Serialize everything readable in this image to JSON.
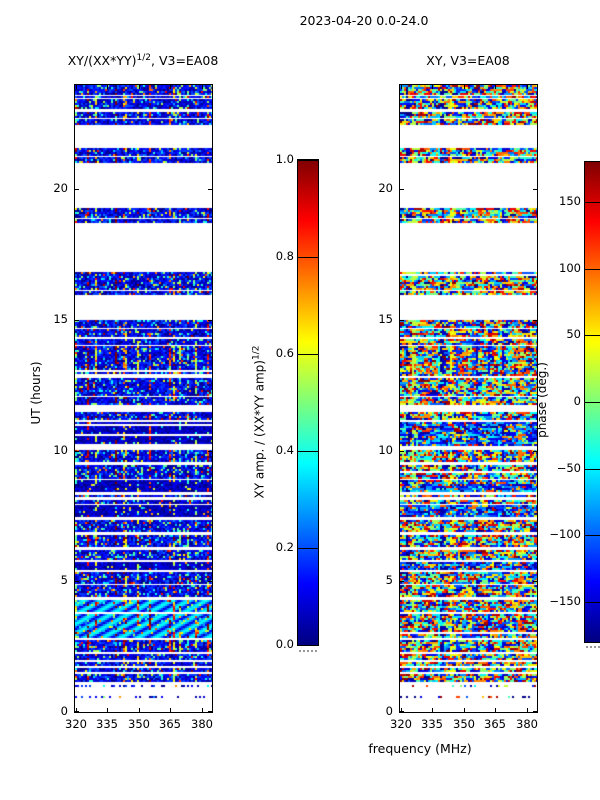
{
  "figure_title": "2023-04-20 0.0-24.0",
  "background": "#ffffff",
  "text_color": "#000000",
  "colormap": "jet",
  "chart_data": [
    {
      "type": "heatmap",
      "title": {
        "base": "XY/(XX*YY)",
        "sup": "1/2",
        "rest": ", V3=EA08"
      },
      "x_axis": {
        "label": "",
        "ticks": [
          "320",
          "335",
          "350",
          "365",
          "380"
        ],
        "range": [
          319.5,
          385
        ],
        "unit": "MHz"
      },
      "y_axis": {
        "label": "UT (hours)",
        "ticks": [
          "0",
          "5",
          "10",
          "15",
          "20"
        ],
        "range": [
          0,
          24
        ]
      },
      "colorbar": {
        "label": {
          "base": "XY amp. / (XX*YY amp)",
          "sup": "1/2"
        },
        "ticks": [
          "0.0",
          "0.2",
          "0.4",
          "0.6",
          "0.8",
          "1.0"
        ],
        "range": [
          0,
          1
        ],
        "colormap": "jet"
      },
      "value_profile": "amp",
      "bands": [
        [
          23.66,
          24.0,
          "dense"
        ],
        [
          23.52,
          23.58,
          "thin"
        ],
        [
          23.12,
          23.46,
          "dense"
        ],
        [
          22.74,
          22.97,
          "dense"
        ],
        [
          22.51,
          22.7,
          "dense"
        ],
        [
          21.28,
          21.59,
          "dense"
        ],
        [
          21.01,
          21.24,
          "dense"
        ],
        [
          18.95,
          19.29,
          "dense"
        ],
        [
          18.76,
          18.87,
          "thin"
        ],
        [
          16.19,
          16.84,
          "dense"
        ],
        [
          16.0,
          16.11,
          "thin"
        ],
        [
          14.74,
          15.0,
          "dense"
        ],
        [
          14.35,
          14.66,
          "dense"
        ],
        [
          14.05,
          14.28,
          "dense"
        ],
        [
          12.86,
          14.01,
          "streaky"
        ],
        [
          12.13,
          12.78,
          "dense"
        ],
        [
          11.79,
          12.06,
          "dense"
        ],
        [
          11.18,
          11.48,
          "dense"
        ],
        [
          10.18,
          11.1,
          "solid"
        ],
        [
          9.57,
          10.03,
          "streaky"
        ],
        [
          8.96,
          9.45,
          "dense"
        ],
        [
          8.42,
          8.88,
          "solid"
        ],
        [
          8.23,
          8.31,
          "thin"
        ],
        [
          8.0,
          8.11,
          "thin"
        ],
        [
          7.46,
          7.92,
          "solid"
        ],
        [
          6.89,
          7.35,
          "dense"
        ],
        [
          6.32,
          6.77,
          "streaky"
        ],
        [
          5.82,
          6.2,
          "dense"
        ],
        [
          5.43,
          5.74,
          "solid"
        ],
        [
          4.94,
          5.36,
          "dense"
        ],
        [
          4.44,
          4.86,
          "dense"
        ],
        [
          3.83,
          4.36,
          "arcs"
        ],
        [
          2.83,
          3.75,
          "arcs"
        ],
        [
          2.3,
          2.76,
          "streaky"
        ],
        [
          1.99,
          2.22,
          "dense"
        ],
        [
          1.76,
          1.91,
          "dense"
        ],
        [
          1.53,
          1.68,
          "thin"
        ],
        [
          1.15,
          1.45,
          "dense"
        ],
        [
          0.96,
          1.03,
          "sparse"
        ],
        [
          0.54,
          0.61,
          "sparse"
        ]
      ]
    },
    {
      "type": "heatmap",
      "title": {
        "base": "XY, V3=EA08",
        "sup": "",
        "rest": ""
      },
      "x_axis": {
        "label": "frequency (MHz)",
        "ticks": [
          "320",
          "335",
          "350",
          "365",
          "380"
        ],
        "range": [
          319.5,
          385
        ],
        "unit": "MHz"
      },
      "y_axis": {
        "label": "",
        "ticks": [
          "0",
          "5",
          "10",
          "15",
          "20"
        ],
        "range": [
          0,
          24
        ]
      },
      "colorbar": {
        "label": {
          "base": "phase (deg.)",
          "sup": ""
        },
        "ticks": [
          "−150",
          "−100",
          "−50",
          "0",
          "50",
          "100",
          "150"
        ],
        "range": [
          -180,
          180
        ],
        "colormap": "jet"
      },
      "value_profile": "phase",
      "bands": [
        [
          23.66,
          24.0,
          "dense"
        ],
        [
          23.52,
          23.58,
          "thin"
        ],
        [
          23.12,
          23.46,
          "dense"
        ],
        [
          22.74,
          22.97,
          "dense"
        ],
        [
          22.51,
          22.7,
          "dense"
        ],
        [
          21.28,
          21.59,
          "dense"
        ],
        [
          21.01,
          21.24,
          "dense"
        ],
        [
          18.95,
          19.29,
          "dense"
        ],
        [
          18.76,
          18.87,
          "thin"
        ],
        [
          16.19,
          16.84,
          "dense"
        ],
        [
          16.0,
          16.11,
          "thin"
        ],
        [
          14.74,
          15.0,
          "dense"
        ],
        [
          14.35,
          14.66,
          "dense"
        ],
        [
          14.05,
          14.28,
          "dense"
        ],
        [
          12.86,
          14.01,
          "streaky"
        ],
        [
          12.13,
          12.78,
          "dense"
        ],
        [
          11.79,
          12.06,
          "dense"
        ],
        [
          11.18,
          11.48,
          "dense"
        ],
        [
          10.18,
          11.1,
          "solid"
        ],
        [
          9.57,
          10.03,
          "streaky"
        ],
        [
          8.96,
          9.45,
          "dense"
        ],
        [
          8.42,
          8.88,
          "solid"
        ],
        [
          8.23,
          8.31,
          "thin"
        ],
        [
          8.0,
          8.11,
          "thin"
        ],
        [
          7.46,
          7.92,
          "solid"
        ],
        [
          6.89,
          7.35,
          "dense"
        ],
        [
          6.32,
          6.77,
          "streaky"
        ],
        [
          5.82,
          6.2,
          "dense"
        ],
        [
          5.43,
          5.74,
          "solid"
        ],
        [
          4.94,
          5.36,
          "dense"
        ],
        [
          4.44,
          4.86,
          "dense"
        ],
        [
          3.83,
          4.36,
          "arcs"
        ],
        [
          2.83,
          3.75,
          "arcs"
        ],
        [
          2.3,
          2.76,
          "streaky"
        ],
        [
          1.99,
          2.22,
          "dense"
        ],
        [
          1.76,
          1.91,
          "dense"
        ],
        [
          1.53,
          1.68,
          "thin"
        ],
        [
          1.15,
          1.45,
          "dense"
        ],
        [
          0.96,
          1.03,
          "sparse"
        ],
        [
          0.54,
          0.61,
          "sparse"
        ]
      ]
    }
  ]
}
